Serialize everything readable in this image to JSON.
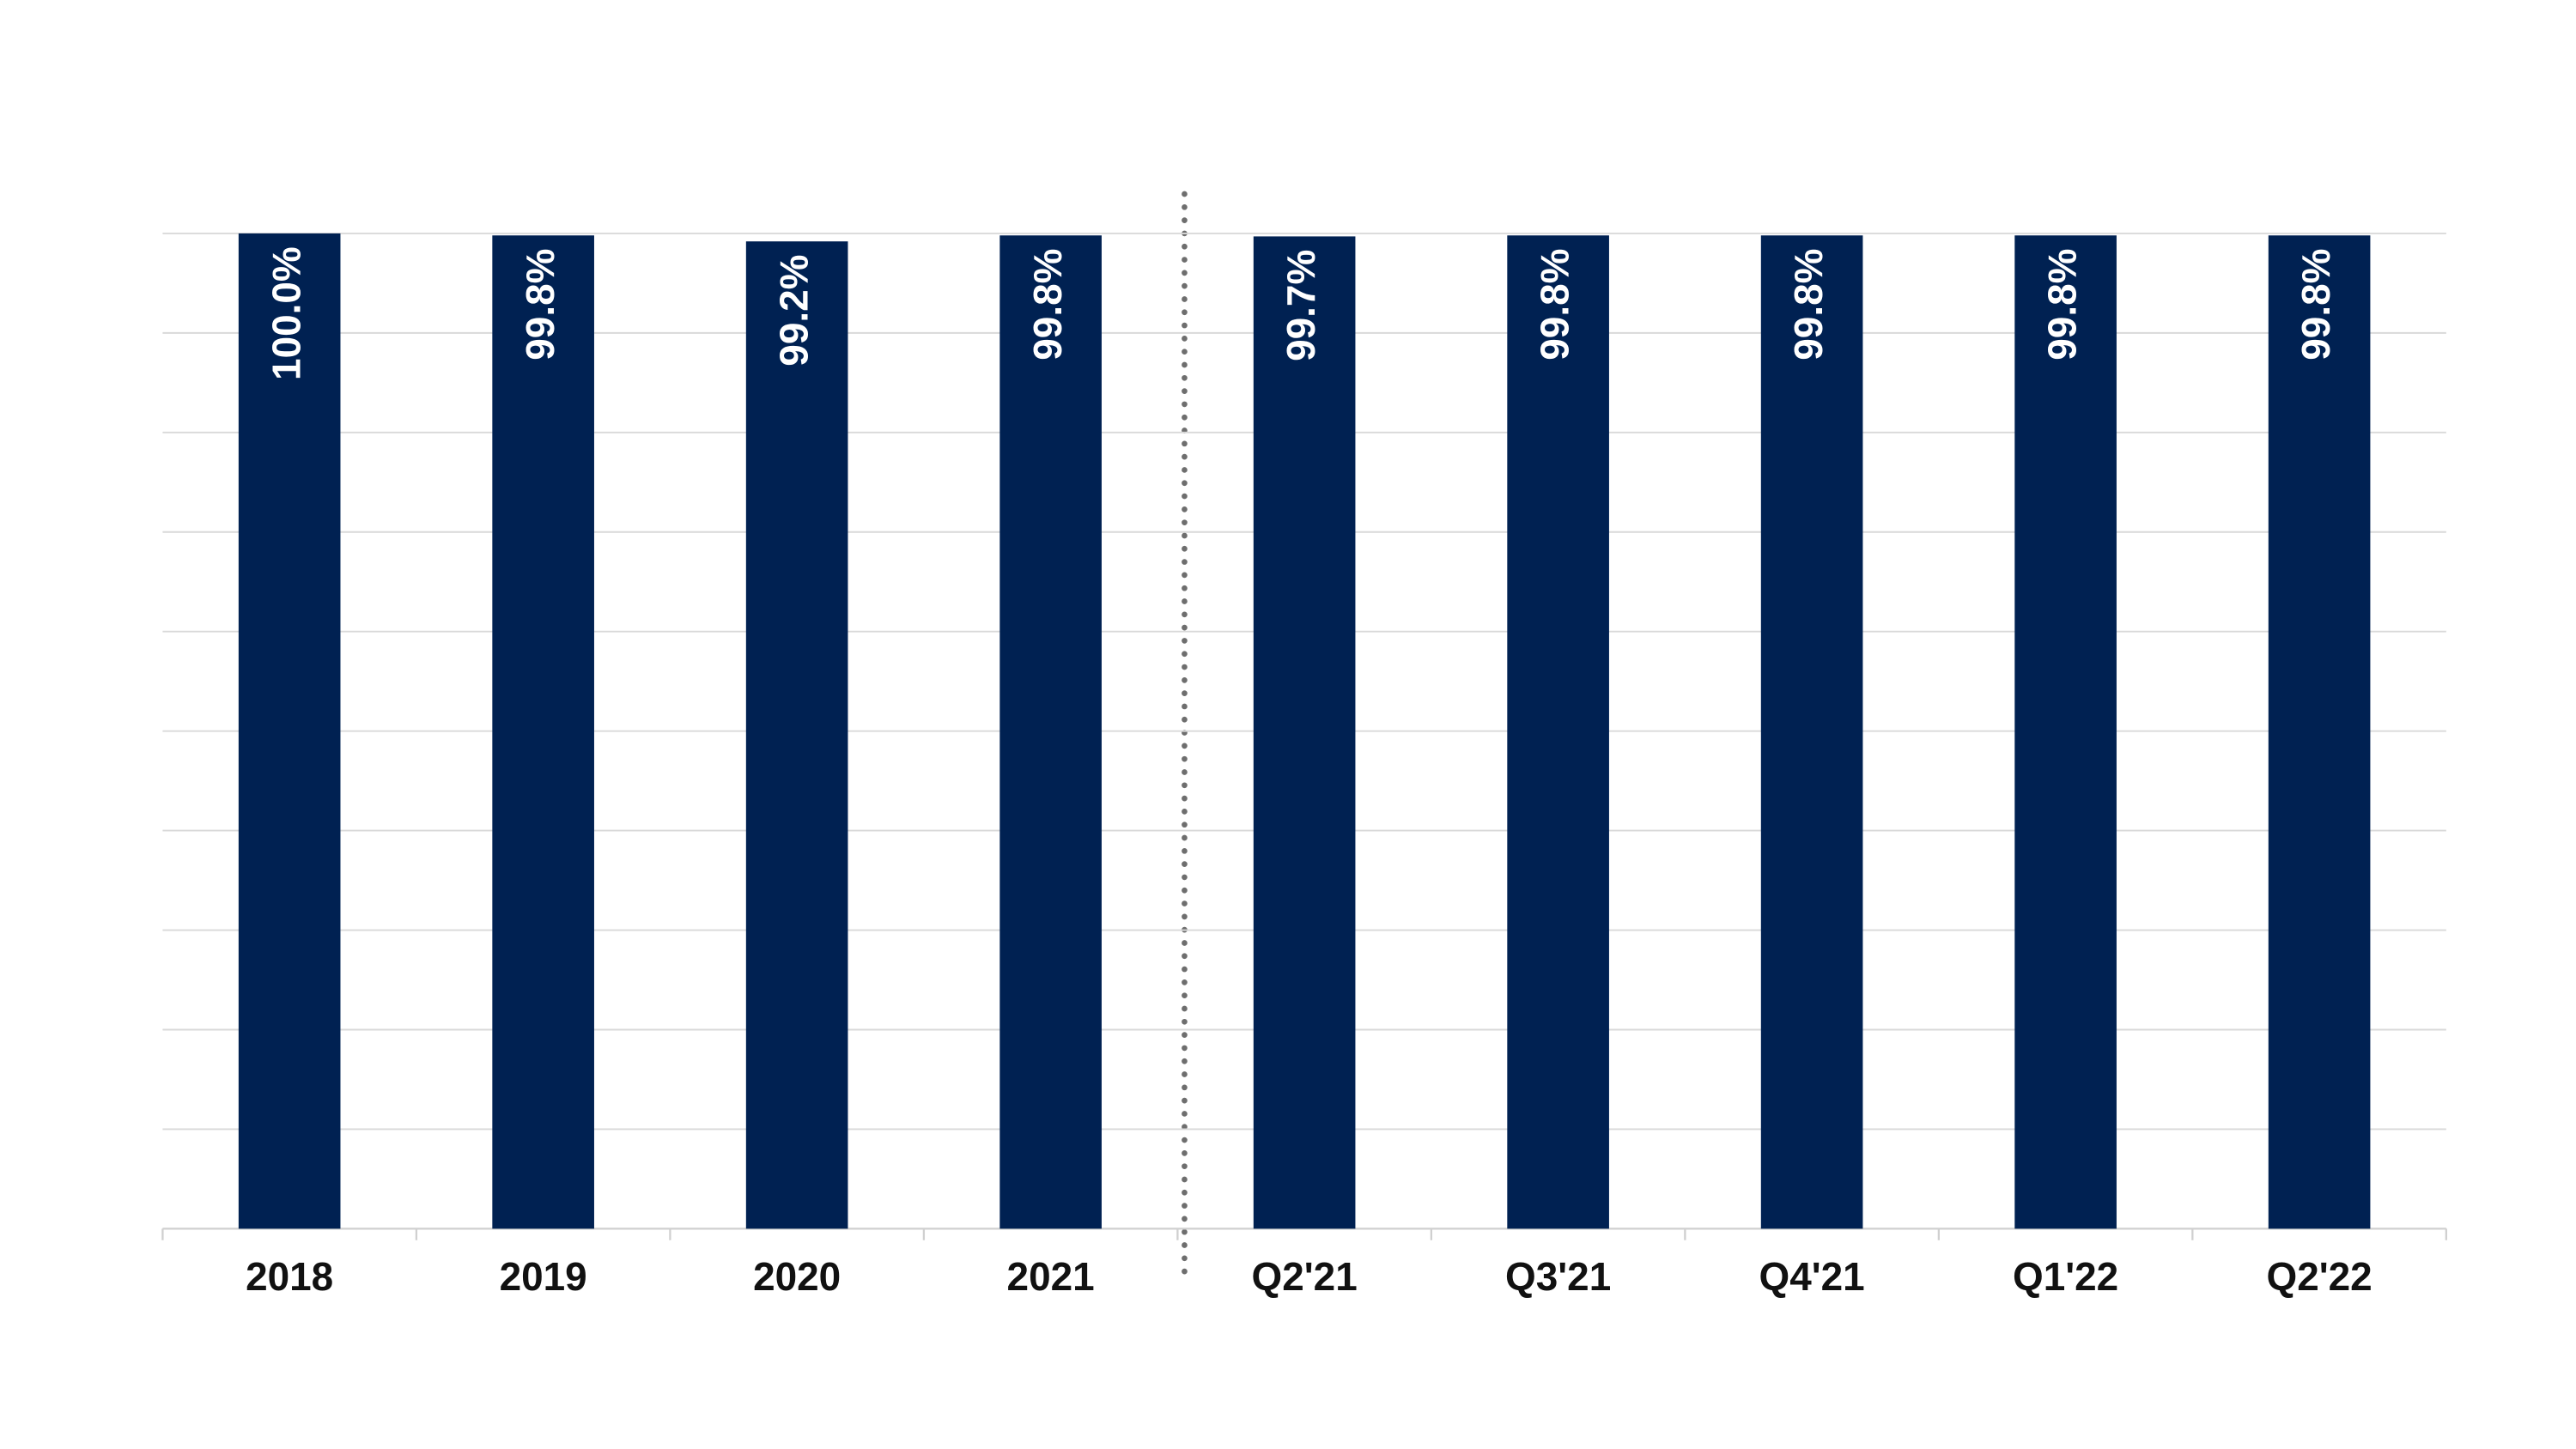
{
  "chart_data": {
    "type": "bar",
    "categories": [
      "2018",
      "2019",
      "2020",
      "2021",
      "Q2'21",
      "Q3'21",
      "Q4'21",
      "Q1'22",
      "Q2'22"
    ],
    "values": [
      100.0,
      99.8,
      99.2,
      99.8,
      99.7,
      99.8,
      99.8,
      99.8,
      99.8
    ],
    "value_labels": [
      "100.0%",
      "99.8%",
      "99.2%",
      "99.8%",
      "99.7%",
      "99.8%",
      "99.8%",
      "99.8%",
      "99.8%"
    ],
    "color": "#002152",
    "ylim": [
      0,
      100
    ],
    "yticks": [
      0,
      10,
      20,
      30,
      40,
      50,
      60,
      70,
      80,
      90,
      100
    ],
    "grid": true
  }
}
